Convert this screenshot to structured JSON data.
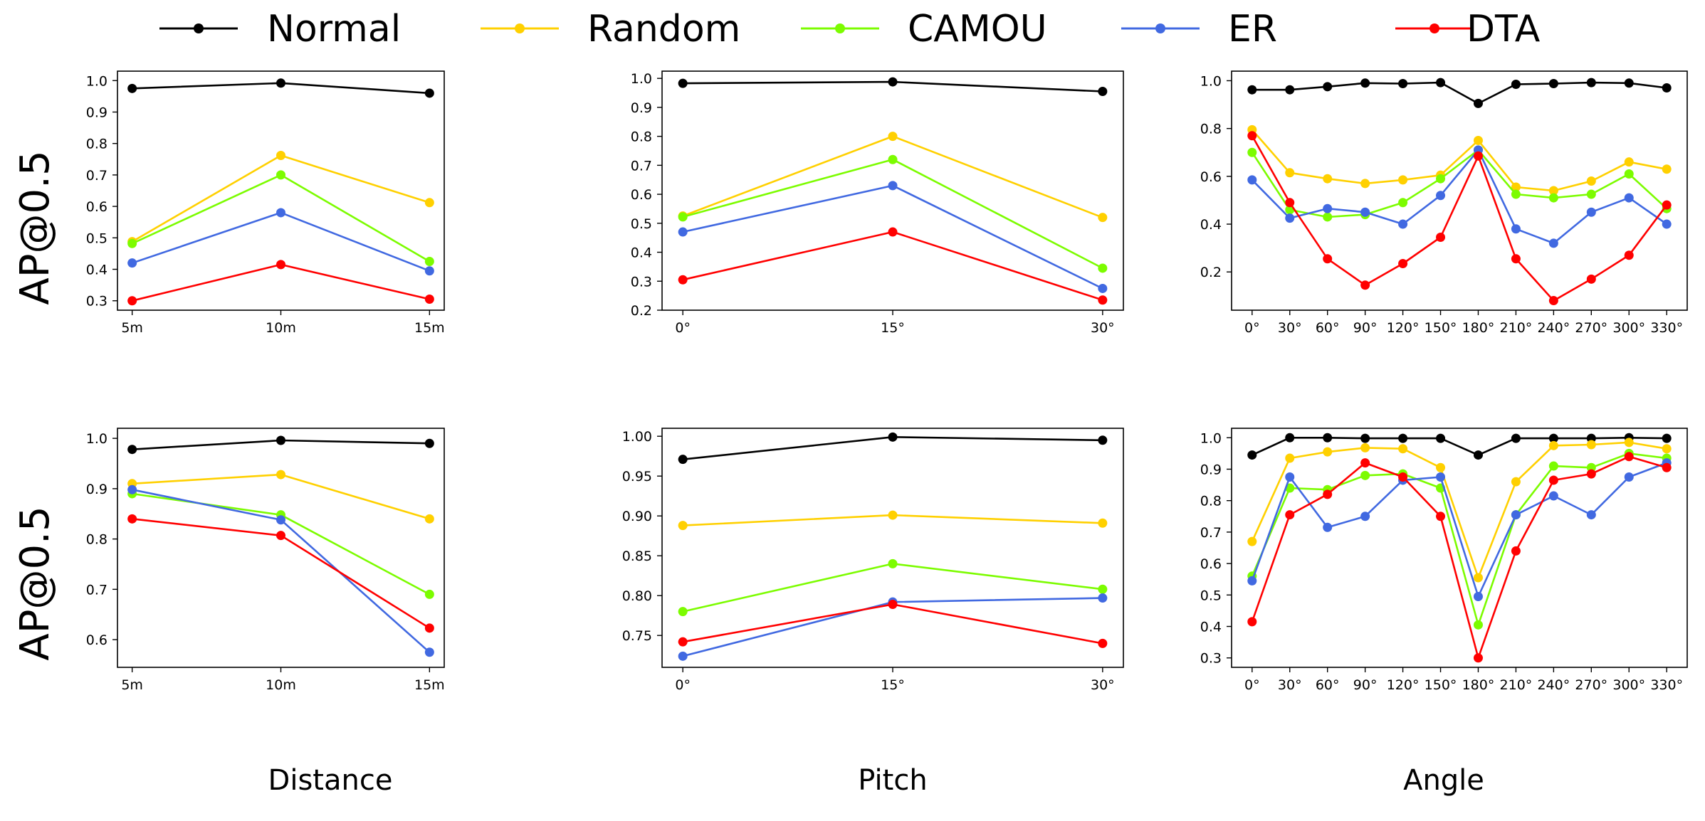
{
  "legend": [
    {
      "name": "Normal",
      "color": "#000000"
    },
    {
      "name": "Random",
      "color": "#ffd000"
    },
    {
      "name": "CAMOU",
      "color": "#7cfc00"
    },
    {
      "name": "ER",
      "color": "#4169e1"
    },
    {
      "name": "DTA",
      "color": "#ff0000"
    }
  ],
  "row_ylabels": [
    "AP@0.5",
    "AP@0.5"
  ],
  "col_xlabels": [
    "Distance",
    "Pitch",
    "Angle"
  ],
  "chart_data": [
    {
      "type": "line",
      "row": 0,
      "col": 0,
      "categories": [
        "5m",
        "10m",
        "15m"
      ],
      "ylim": [
        0.27,
        1.03
      ],
      "yticks": [
        0.3,
        0.4,
        0.5,
        0.6,
        0.7,
        0.8,
        0.9,
        1.0
      ],
      "ytick_labels": [
        "0.3",
        "0.4",
        "0.5",
        "0.6",
        "0.7",
        "0.8",
        "0.9",
        "1.0"
      ],
      "series": [
        {
          "name": "Normal",
          "values": [
            0.975,
            0.992,
            0.96
          ]
        },
        {
          "name": "Random",
          "values": [
            0.488,
            0.762,
            0.612
          ]
        },
        {
          "name": "CAMOU",
          "values": [
            0.482,
            0.7,
            0.425
          ]
        },
        {
          "name": "ER",
          "values": [
            0.42,
            0.58,
            0.395
          ]
        },
        {
          "name": "DTA",
          "values": [
            0.3,
            0.415,
            0.305
          ]
        }
      ]
    },
    {
      "type": "line",
      "row": 0,
      "col": 1,
      "categories": [
        "0°",
        "15°",
        "30°"
      ],
      "ylim": [
        0.2,
        1.025
      ],
      "yticks": [
        0.2,
        0.3,
        0.4,
        0.5,
        0.6,
        0.7,
        0.8,
        0.9,
        1.0
      ],
      "ytick_labels": [
        "0.2",
        "0.3",
        "0.4",
        "0.5",
        "0.6",
        "0.7",
        "0.8",
        "0.9",
        "1.0"
      ],
      "series": [
        {
          "name": "Normal",
          "values": [
            0.983,
            0.988,
            0.955
          ]
        },
        {
          "name": "Random",
          "values": [
            0.525,
            0.8,
            0.52
          ]
        },
        {
          "name": "CAMOU",
          "values": [
            0.522,
            0.72,
            0.345
          ]
        },
        {
          "name": "ER",
          "values": [
            0.47,
            0.63,
            0.275
          ]
        },
        {
          "name": "DTA",
          "values": [
            0.305,
            0.47,
            0.235
          ]
        }
      ]
    },
    {
      "type": "line",
      "row": 0,
      "col": 2,
      "categories": [
        "0°",
        "30°",
        "60°",
        "90°",
        "120°",
        "150°",
        "180°",
        "210°",
        "240°",
        "270°",
        "300°",
        "330°"
      ],
      "ylim": [
        0.04,
        1.04
      ],
      "yticks": [
        0.2,
        0.4,
        0.6,
        0.8,
        1.0
      ],
      "ytick_labels": [
        "0.2",
        "0.4",
        "0.6",
        "0.8",
        "1.0"
      ],
      "series": [
        {
          "name": "Normal",
          "values": [
            0.962,
            0.962,
            0.975,
            0.99,
            0.988,
            0.992,
            0.905,
            0.985,
            0.988,
            0.992,
            0.99,
            0.97
          ]
        },
        {
          "name": "Random",
          "values": [
            0.795,
            0.615,
            0.59,
            0.57,
            0.585,
            0.605,
            0.75,
            0.555,
            0.54,
            0.58,
            0.66,
            0.63
          ]
        },
        {
          "name": "CAMOU",
          "values": [
            0.7,
            0.46,
            0.43,
            0.44,
            0.49,
            0.59,
            0.71,
            0.525,
            0.51,
            0.525,
            0.61,
            0.465
          ]
        },
        {
          "name": "ER",
          "values": [
            0.585,
            0.425,
            0.465,
            0.45,
            0.4,
            0.52,
            0.71,
            0.38,
            0.32,
            0.45,
            0.51,
            0.4
          ]
        },
        {
          "name": "DTA",
          "values": [
            0.77,
            0.49,
            0.255,
            0.145,
            0.235,
            0.345,
            0.685,
            0.255,
            0.08,
            0.17,
            0.27,
            0.48
          ]
        }
      ]
    },
    {
      "type": "line",
      "row": 1,
      "col": 0,
      "categories": [
        "5m",
        "10m",
        "15m"
      ],
      "ylim": [
        0.545,
        1.02
      ],
      "yticks": [
        0.6,
        0.7,
        0.8,
        0.9,
        1.0
      ],
      "ytick_labels": [
        "0.6",
        "0.7",
        "0.8",
        "0.9",
        "1.0"
      ],
      "series": [
        {
          "name": "Normal",
          "values": [
            0.978,
            0.996,
            0.99
          ]
        },
        {
          "name": "Random",
          "values": [
            0.91,
            0.928,
            0.84
          ]
        },
        {
          "name": "CAMOU",
          "values": [
            0.89,
            0.848,
            0.69
          ]
        },
        {
          "name": "ER",
          "values": [
            0.898,
            0.838,
            0.575
          ]
        },
        {
          "name": "DTA",
          "values": [
            0.84,
            0.807,
            0.623
          ]
        }
      ]
    },
    {
      "type": "line",
      "row": 1,
      "col": 1,
      "categories": [
        "0°",
        "15°",
        "30°"
      ],
      "ylim": [
        0.71,
        1.01
      ],
      "yticks": [
        0.75,
        0.8,
        0.85,
        0.9,
        0.95,
        1.0
      ],
      "ytick_labels": [
        "0.75",
        "0.80",
        "0.85",
        "0.90",
        "0.95",
        "1.00"
      ],
      "series": [
        {
          "name": "Normal",
          "values": [
            0.971,
            0.999,
            0.995
          ]
        },
        {
          "name": "Random",
          "values": [
            0.888,
            0.901,
            0.891
          ]
        },
        {
          "name": "CAMOU",
          "values": [
            0.78,
            0.84,
            0.808
          ]
        },
        {
          "name": "ER",
          "values": [
            0.724,
            0.792,
            0.797
          ]
        },
        {
          "name": "DTA",
          "values": [
            0.742,
            0.789,
            0.74
          ]
        }
      ]
    },
    {
      "type": "line",
      "row": 1,
      "col": 2,
      "categories": [
        "0°",
        "30°",
        "60°",
        "90°",
        "120°",
        "150°",
        "180°",
        "210°",
        "240°",
        "270°",
        "300°",
        "330°"
      ],
      "ylim": [
        0.27,
        1.03
      ],
      "yticks": [
        0.3,
        0.4,
        0.5,
        0.6,
        0.7,
        0.8,
        0.9,
        1.0
      ],
      "ytick_labels": [
        "0.3",
        "0.4",
        "0.5",
        "0.6",
        "0.7",
        "0.8",
        "0.9",
        "1.0"
      ],
      "series": [
        {
          "name": "Normal",
          "values": [
            0.945,
            1.0,
            1.0,
            0.998,
            0.998,
            0.998,
            0.945,
            0.998,
            0.998,
            0.998,
            1.0,
            0.998
          ]
        },
        {
          "name": "Random",
          "values": [
            0.67,
            0.935,
            0.955,
            0.968,
            0.965,
            0.905,
            0.555,
            0.86,
            0.975,
            0.978,
            0.985,
            0.965
          ]
        },
        {
          "name": "CAMOU",
          "values": [
            0.56,
            0.84,
            0.835,
            0.88,
            0.885,
            0.84,
            0.405,
            0.755,
            0.91,
            0.905,
            0.95,
            0.935
          ]
        },
        {
          "name": "ER",
          "values": [
            0.545,
            0.875,
            0.715,
            0.75,
            0.865,
            0.875,
            0.495,
            0.755,
            0.815,
            0.755,
            0.875,
            0.92
          ]
        },
        {
          "name": "DTA",
          "values": [
            0.415,
            0.755,
            0.82,
            0.92,
            0.875,
            0.75,
            0.3,
            0.64,
            0.865,
            0.885,
            0.94,
            0.905
          ]
        }
      ]
    }
  ]
}
